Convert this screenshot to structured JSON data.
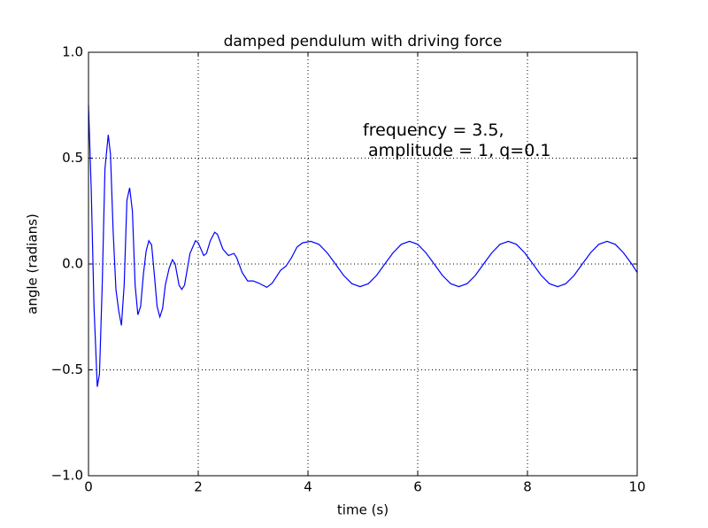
{
  "chart_data": {
    "type": "line",
    "title": "damped pendulum with driving force",
    "xlabel": "time (s)",
    "ylabel": "angle (radians)",
    "annotation": "frequency = 3.5,\n amplitude = 1, q=0.1",
    "x": [
      0,
      0.05,
      0.1,
      0.16,
      0.2,
      0.25,
      0.3,
      0.36,
      0.4,
      0.45,
      0.5,
      0.55,
      0.6,
      0.65,
      0.7,
      0.75,
      0.8,
      0.85,
      0.9,
      0.95,
      1.0,
      1.05,
      1.1,
      1.15,
      1.2,
      1.25,
      1.3,
      1.35,
      1.4,
      1.47,
      1.53,
      1.58,
      1.65,
      1.7,
      1.75,
      1.85,
      1.95,
      2.0,
      2.1,
      2.15,
      2.22,
      2.3,
      2.35,
      2.45,
      2.55,
      2.65,
      2.7,
      2.8,
      2.9,
      3.0,
      3.1,
      3.25,
      3.35,
      3.5,
      3.6,
      3.7,
      3.8,
      3.9,
      4.05,
      4.2,
      4.35,
      4.5,
      4.65,
      4.8,
      4.95,
      5.1,
      5.25,
      5.4,
      5.55,
      5.7,
      5.85,
      6.0,
      6.15,
      6.3,
      6.45,
      6.6,
      6.75,
      6.9,
      7.05,
      7.2,
      7.35,
      7.5,
      7.65,
      7.8,
      7.95,
      8.1,
      8.25,
      8.4,
      8.55,
      8.7,
      8.85,
      9.0,
      9.15,
      9.3,
      9.45,
      9.6,
      9.75,
      9.9,
      10.0
    ],
    "series": [
      {
        "name": "angle",
        "color": "#0000ff",
        "values": [
          0.75,
          0.35,
          -0.2,
          -0.58,
          -0.52,
          -0.1,
          0.45,
          0.61,
          0.52,
          0.15,
          -0.12,
          -0.22,
          -0.29,
          -0.1,
          0.3,
          0.36,
          0.25,
          -0.1,
          -0.24,
          -0.2,
          -0.05,
          0.06,
          0.11,
          0.09,
          -0.05,
          -0.2,
          -0.25,
          -0.21,
          -0.1,
          -0.02,
          0.02,
          0.0,
          -0.1,
          -0.12,
          -0.1,
          0.05,
          0.11,
          0.1,
          0.04,
          0.05,
          0.11,
          0.15,
          0.14,
          0.07,
          0.04,
          0.05,
          0.03,
          -0.04,
          -0.08,
          -0.08,
          -0.09,
          -0.11,
          -0.09,
          -0.03,
          -0.01,
          0.03,
          0.08,
          0.1,
          0.107,
          0.093,
          0.053,
          0,
          -0.054,
          -0.093,
          -0.107,
          -0.093,
          -0.054,
          0,
          0.053,
          0.093,
          0.107,
          0.093,
          0.053,
          0,
          -0.054,
          -0.093,
          -0.107,
          -0.093,
          -0.054,
          0,
          0.053,
          0.093,
          0.107,
          0.093,
          0.053,
          0,
          -0.054,
          -0.093,
          -0.107,
          -0.093,
          -0.054,
          0,
          0.053,
          0.093,
          0.107,
          0.093,
          0.053,
          0,
          -0.04
        ]
      }
    ],
    "xlim": [
      0,
      10
    ],
    "xticks": [
      0,
      2,
      4,
      6,
      8,
      10
    ],
    "ylim": [
      -1,
      1
    ],
    "yticks": [
      {
        "value": -1,
        "label": "−1.0"
      },
      {
        "value": -0.5,
        "label": "−0.5"
      },
      {
        "value": 0,
        "label": "0.0"
      },
      {
        "value": 0.5,
        "label": "0.5"
      },
      {
        "value": 1,
        "label": "1.0"
      }
    ],
    "grid": true
  }
}
